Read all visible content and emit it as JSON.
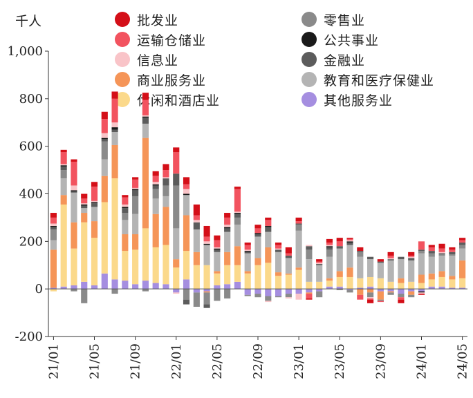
{
  "unit_label": "千人",
  "colors": {
    "批发业": "#d40f18",
    "运输仓储业": "#f2535f",
    "信息业": "#f9c4c8",
    "商业服务业": "#f59558",
    "休闲和酒店业": "#fbd98b",
    "零售业": "#8a8a8a",
    "公共事业": "#1a1a1a",
    "金融业": "#5c5c5c",
    "教育和医疗保健业": "#b4b4b4",
    "其他服务业": "#a58ee0"
  },
  "legend": [
    {
      "label": "批发业",
      "color": "#d40f18"
    },
    {
      "label": "运输仓储业",
      "color": "#f2535f"
    },
    {
      "label": "信息业",
      "color": "#f9c4c8"
    },
    {
      "label": "商业服务业",
      "color": "#f59558"
    },
    {
      "label": "休闲和酒店业",
      "color": "#fbd98b"
    },
    {
      "label": "零售业",
      "color": "#8a8a8a"
    },
    {
      "label": "公共事业",
      "color": "#1a1a1a"
    },
    {
      "label": "金融业",
      "color": "#5c5c5c"
    },
    {
      "label": "教育和医疗保健业",
      "color": "#b4b4b4"
    },
    {
      "label": "其他服务业",
      "color": "#a58ee0"
    }
  ],
  "chart_data": {
    "type": "bar",
    "stacked": true,
    "ylim": [
      -200,
      1000
    ],
    "yticks": [
      "-200",
      "0",
      "200",
      "400",
      "600",
      "800",
      "1,000"
    ],
    "ytick_values": [
      -200,
      0,
      200,
      400,
      600,
      800,
      1000
    ],
    "xtick_labels": [
      "21/01",
      "21/05",
      "21/09",
      "22/01",
      "22/05",
      "22/09",
      "23/01",
      "23/05",
      "23/09",
      "24/01",
      "24/05"
    ],
    "categories": [
      "21/01",
      "21/02",
      "21/03",
      "21/04",
      "21/05",
      "21/06",
      "21/07",
      "21/08",
      "21/09",
      "21/10",
      "21/11",
      "21/12",
      "22/01",
      "22/02",
      "22/03",
      "22/04",
      "22/05",
      "22/06",
      "22/07",
      "22/08",
      "22/09",
      "22/10",
      "22/11",
      "22/12",
      "23/01",
      "23/02",
      "23/03",
      "23/04",
      "23/05",
      "23/06",
      "23/07",
      "23/08",
      "23/09",
      "23/10",
      "23/11",
      "23/12",
      "24/01",
      "24/02",
      "24/03",
      "24/04",
      "24/05"
    ],
    "series": [
      {
        "name": "其他服务业",
        "values": [
          5,
          10,
          15,
          30,
          15,
          65,
          40,
          35,
          20,
          35,
          25,
          20,
          -15,
          40,
          -15,
          -10,
          15,
          20,
          30,
          -25,
          -20,
          -30,
          -30,
          -20,
          -20,
          -15,
          -10,
          10,
          10,
          -5,
          5,
          10,
          -10,
          -10,
          -20,
          -10,
          -10,
          10,
          10,
          5,
          5
        ]
      },
      {
        "name": "休闲和酒店业",
        "values": [
          -10,
          345,
          155,
          250,
          200,
          300,
          425,
          125,
          145,
          220,
          150,
          165,
          90,
          120,
          100,
          100,
          50,
          80,
          70,
          65,
          100,
          110,
          55,
          60,
          80,
          30,
          30,
          25,
          40,
          50,
          40,
          40,
          45,
          30,
          25,
          30,
          25,
          30,
          40,
          35,
          40
        ]
      },
      {
        "name": "商业服务业",
        "values": [
          160,
          40,
          110,
          40,
          70,
          110,
          140,
          70,
          65,
          380,
          140,
          160,
          35,
          150,
          55,
          -5,
          10,
          55,
          80,
          10,
          30,
          65,
          15,
          5,
          10,
          -5,
          0,
          10,
          25,
          40,
          -25,
          -15,
          -35,
          -5,
          20,
          -15,
          35,
          25,
          25,
          15,
          75
        ]
      },
      {
        "name": "教育和医疗保健业",
        "values": [
          40,
          70,
          125,
          20,
          60,
          70,
          55,
          60,
          85,
          60,
          65,
          45,
          130,
          85,
          95,
          85,
          80,
          85,
          90,
          75,
          90,
          65,
          85,
          65,
          155,
          95,
          70,
          90,
          95,
          95,
          90,
          75,
          65,
          90,
          80,
          90,
          90,
          70,
          65,
          85,
          50
        ]
      },
      {
        "name": "零售业",
        "values": [
          45,
          35,
          -10,
          -60,
          0,
          75,
          -20,
          30,
          75,
          -10,
          40,
          45,
          180,
          -45,
          -60,
          -50,
          -50,
          -40,
          30,
          -5,
          -15,
          -20,
          -5,
          -15,
          25,
          40,
          -25,
          30,
          -5,
          -10,
          20,
          -20,
          -5,
          -10,
          -15,
          -10,
          10,
          15,
          5,
          5,
          15
        ]
      },
      {
        "name": "金融业",
        "values": [
          10,
          15,
          5,
          10,
          15,
          10,
          10,
          20,
          25,
          25,
          15,
          30,
          50,
          -20,
          30,
          -15,
          10,
          15,
          15,
          5,
          10,
          20,
          10,
          10,
          5,
          15,
          5,
          10,
          10,
          10,
          5,
          10,
          5,
          5,
          10,
          10,
          5,
          10,
          5,
          10,
          10
        ]
      },
      {
        "name": "公共事业",
        "values": [
          5,
          5,
          5,
          5,
          5,
          5,
          10,
          5,
          5,
          5,
          5,
          0,
          0,
          5,
          0,
          5,
          5,
          5,
          5,
          5,
          5,
          5,
          0,
          0,
          0,
          0,
          0,
          5,
          0,
          5,
          0,
          0,
          0,
          0,
          0,
          0,
          -5,
          0,
          0,
          0,
          0
        ]
      },
      {
        "name": "信息业",
        "values": [
          10,
          5,
          20,
          5,
          5,
          20,
          20,
          10,
          5,
          5,
          10,
          5,
          -5,
          20,
          10,
          10,
          5,
          10,
          5,
          5,
          0,
          -5,
          5,
          -5,
          -25,
          5,
          5,
          5,
          0,
          5,
          0,
          -5,
          0,
          5,
          0,
          5,
          -5,
          0,
          5,
          0,
          0
        ]
      },
      {
        "name": "运输仓储业",
        "values": [
          25,
          50,
          100,
          20,
          60,
          60,
          100,
          30,
          35,
          65,
          25,
          30,
          90,
          20,
          20,
          20,
          30,
          30,
          95,
          20,
          20,
          25,
          15,
          10,
          10,
          -20,
          5,
          10,
          20,
          5,
          -20,
          -5,
          -5,
          10,
          -10,
          5,
          35,
          15,
          15,
          10,
          10
        ]
      },
      {
        "name": "批发业",
        "values": [
          20,
          10,
          10,
          20,
          20,
          30,
          30,
          10,
          10,
          30,
          20,
          25,
          20,
          30,
          45,
          45,
          20,
          20,
          10,
          10,
          15,
          10,
          10,
          25,
          15,
          -5,
          10,
          15,
          15,
          5,
          15,
          -15,
          10,
          15,
          -15,
          15,
          -5,
          10,
          20,
          10,
          10
        ]
      }
    ]
  }
}
